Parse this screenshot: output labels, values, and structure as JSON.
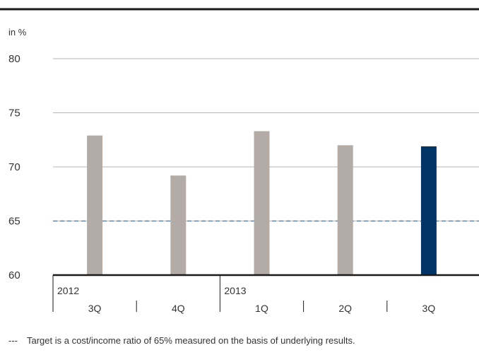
{
  "chart_data": {
    "type": "bar",
    "unit_label": "in %",
    "ylim": [
      60,
      80
    ],
    "yticks": [
      60,
      65,
      70,
      75,
      80
    ],
    "grid": true,
    "groups": [
      {
        "year": "2012",
        "categories": [
          "3Q",
          "4Q"
        ]
      },
      {
        "year": "2013",
        "categories": [
          "1Q",
          "2Q",
          "3Q"
        ]
      }
    ],
    "values": [
      72.9,
      69.2,
      73.3,
      72.0,
      71.9
    ],
    "target_value": 65,
    "colors": {
      "bar": "#b3aba6",
      "highlight_bar": "#003366",
      "target_line": "#4f6f90",
      "grid": "#b5b5b5",
      "axis": "#1a1a1a"
    },
    "highlight_index": 4,
    "footnote_marker": "---",
    "footnote": "Target is a cost/income ratio of 65% measured on the basis of underlying results."
  }
}
